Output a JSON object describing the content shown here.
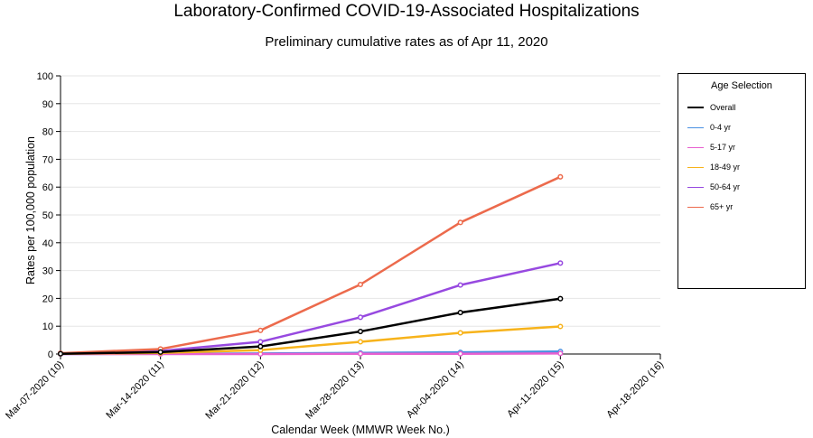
{
  "header": {
    "title": "Laboratory-Confirmed COVID-19-Associated Hospitalizations",
    "subtitle": "Preliminary cumulative rates as of Apr 11, 2020"
  },
  "legend": {
    "title": "Age Selection"
  },
  "chart_data": {
    "type": "line",
    "title": "Laboratory-Confirmed COVID-19-Associated Hospitalizations",
    "subtitle": "Preliminary cumulative rates as of Apr 11, 2020",
    "xlabel": "Calendar Week (MMWR Week No.)",
    "ylabel": "Rates per 100,000 population",
    "categories": [
      "Mar-07-2020 (10)",
      "Mar-14-2020 (11)",
      "Mar-21-2020 (12)",
      "Mar-28-2020 (13)",
      "Apr-04-2020 (14)",
      "Apr-11-2020 (15)",
      "Apr-18-2020 (16)"
    ],
    "ylim": [
      0,
      100
    ],
    "yticks": [
      0,
      10,
      20,
      30,
      40,
      50,
      60,
      70,
      80,
      90,
      100
    ],
    "grid": true,
    "legend_position": "right",
    "series": [
      {
        "name": "Overall",
        "color": "#000000",
        "values": [
          0.1,
          0.7,
          2.7,
          8.1,
          14.9,
          19.9,
          null
        ]
      },
      {
        "name": "0-4 yr",
        "color": "#4a90e2",
        "values": [
          0.0,
          0.1,
          0.2,
          0.4,
          0.6,
          0.9,
          null
        ]
      },
      {
        "name": "5-17 yr",
        "color": "#e75fd0",
        "values": [
          0.0,
          0.0,
          0.0,
          0.1,
          0.1,
          0.2,
          null
        ]
      },
      {
        "name": "18-49 yr",
        "color": "#f7b31b",
        "values": [
          0.1,
          0.4,
          1.4,
          4.4,
          7.6,
          9.9,
          null
        ]
      },
      {
        "name": "50-64 yr",
        "color": "#9749e0",
        "values": [
          0.2,
          1.1,
          4.4,
          13.2,
          24.8,
          32.7,
          null
        ]
      },
      {
        "name": "65+ yr",
        "color": "#ec6a4c",
        "values": [
          0.3,
          1.8,
          8.5,
          25.0,
          47.3,
          63.7,
          null
        ]
      }
    ]
  }
}
